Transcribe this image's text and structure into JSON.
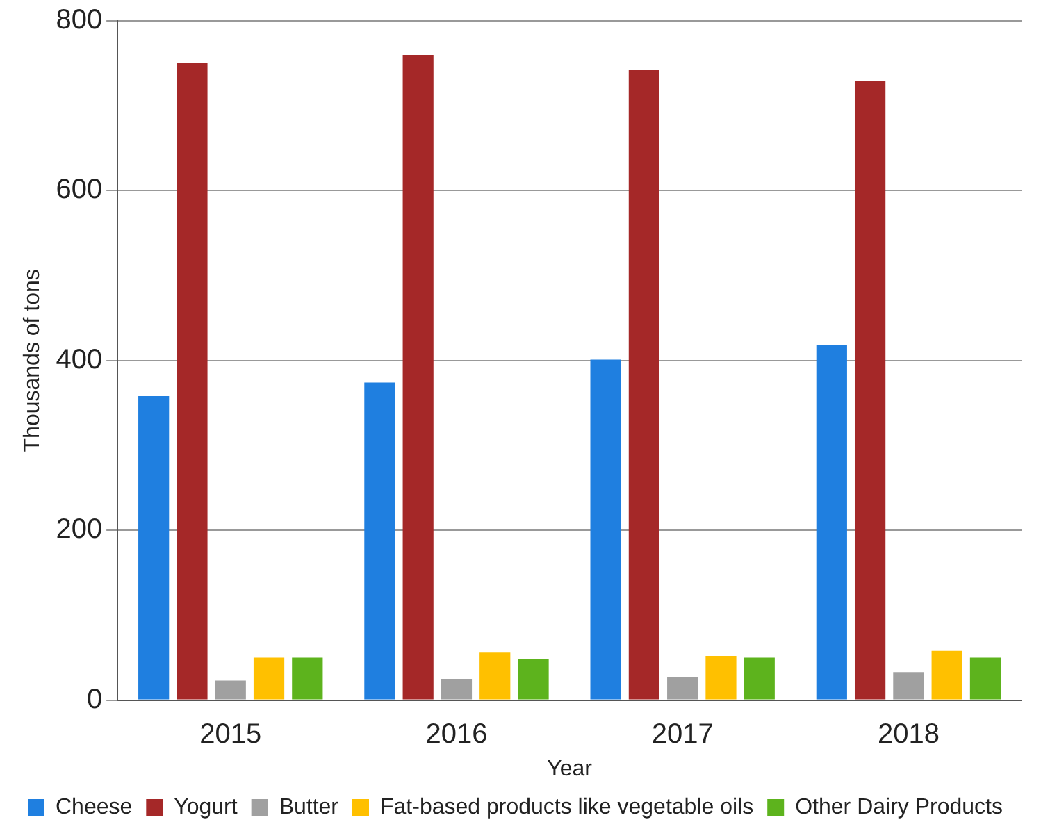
{
  "chart_data": {
    "type": "bar",
    "xlabel": "Year",
    "ylabel": "Thousands of tons",
    "categories": [
      "2015",
      "2016",
      "2017",
      "2018"
    ],
    "series": [
      {
        "name": "Cheese",
        "color": "#1f7fe0",
        "values": [
          358,
          374,
          401,
          418
        ]
      },
      {
        "name": "Yogurt",
        "color": "#a52828",
        "values": [
          750,
          760,
          742,
          729
        ]
      },
      {
        "name": "Butter",
        "color": "#a0a0a0",
        "values": [
          23,
          25,
          27,
          33
        ]
      },
      {
        "name": "Fat-based products like vegetable oils",
        "color": "#ffc000",
        "values": [
          50,
          56,
          52,
          58
        ]
      },
      {
        "name": "Other Dairy Products",
        "color": "#5db31d",
        "values": [
          50,
          48,
          50,
          50
        ]
      }
    ],
    "ylim": [
      0,
      800
    ],
    "yticks": [
      0,
      200,
      400,
      600,
      800
    ],
    "grid": "y",
    "legend": "bottom"
  }
}
